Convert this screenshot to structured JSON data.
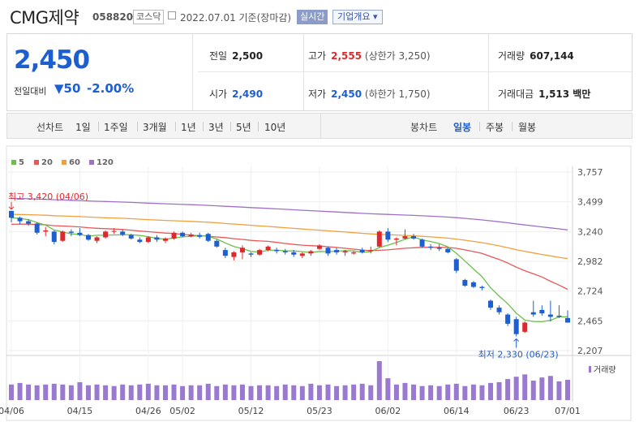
{
  "header": {
    "company_name": "CMG제약",
    "stock_code": "058820",
    "market_badge": "코스닥",
    "date_text": "2022.07.01 기준(장마감)",
    "live_badge": "실시간",
    "company_info_button": "기업개요 ▾"
  },
  "price": {
    "current": "2,450",
    "compare_label": "전일대비",
    "change": "▼50",
    "change_pct": "-2.00%"
  },
  "stats": {
    "prev_close_label": "전일",
    "prev_close": "2,500",
    "high_label": "고가",
    "high": "2,555",
    "upper_limit": "(상한가 3,250)",
    "volume_label": "거래량",
    "volume": "607,144",
    "open_label": "시가",
    "open": "2,490",
    "low_label": "저가",
    "low": "2,450",
    "lower_limit": "(하한가 1,750)",
    "amount_label": "거래대금",
    "amount": "1,513 백만"
  },
  "tabs": {
    "line_label": "선차트",
    "line_ranges": [
      "1일",
      "1주일",
      "3개월",
      "1년",
      "3년",
      "5년",
      "10년"
    ],
    "candle_label": "봉차트",
    "candle_ranges": [
      "일봉",
      "주봉",
      "월봉"
    ],
    "candle_active": "일봉"
  },
  "colors": {
    "up": "#e0282c",
    "down": "#1e5fd0",
    "ma5": "#6cc04a",
    "ma20": "#e8585a",
    "ma60": "#f0a040",
    "ma120": "#a070c8",
    "volume": "#9a7ad0"
  },
  "chart_data": {
    "type": "candlestick",
    "legend": [
      "5",
      "20",
      "60",
      "120"
    ],
    "y_ticks": [
      "3,757",
      "3,499",
      "3,240",
      "2,982",
      "2,724",
      "2,465",
      "2,207"
    ],
    "ylim": [
      2207,
      3757
    ],
    "x_ticks": [
      "04/06",
      "04/15",
      "04/26",
      "05/02",
      "05/12",
      "05/23",
      "06/02",
      "06/14",
      "06/23",
      "07/01"
    ],
    "x_tick_index": [
      0,
      8,
      16,
      20,
      28,
      36,
      44,
      52,
      59,
      65
    ],
    "max_label": "최고 3,420 (04/06)",
    "min_label": "최저 2,330 (06/23)",
    "volume_label": "거래량",
    "candles": [
      [
        3420,
        3420,
        3320,
        3360
      ],
      [
        3360,
        3370,
        3300,
        3330
      ],
      [
        3330,
        3345,
        3290,
        3310
      ],
      [
        3310,
        3320,
        3215,
        3230
      ],
      [
        3240,
        3280,
        3200,
        3250
      ],
      [
        3240,
        3250,
        3130,
        3150
      ],
      [
        3160,
        3250,
        3150,
        3240
      ],
      [
        3240,
        3260,
        3200,
        3230
      ],
      [
        3230,
        3270,
        3200,
        3210
      ],
      [
        3210,
        3220,
        3160,
        3170
      ],
      [
        3160,
        3200,
        3140,
        3190
      ],
      [
        3190,
        3250,
        3180,
        3240
      ],
      [
        3240,
        3270,
        3220,
        3245
      ],
      [
        3240,
        3260,
        3200,
        3215
      ],
      [
        3210,
        3220,
        3170,
        3180
      ],
      [
        3170,
        3190,
        3140,
        3150
      ],
      [
        3150,
        3200,
        3140,
        3190
      ],
      [
        3190,
        3210,
        3150,
        3170
      ],
      [
        3160,
        3190,
        3140,
        3180
      ],
      [
        3180,
        3240,
        3170,
        3230
      ],
      [
        3230,
        3240,
        3190,
        3200
      ],
      [
        3200,
        3230,
        3190,
        3215
      ],
      [
        3210,
        3230,
        3180,
        3195
      ],
      [
        3220,
        3230,
        3150,
        3160
      ],
      [
        3160,
        3170,
        3100,
        3110
      ],
      [
        3080,
        3100,
        3010,
        3030
      ],
      [
        3020,
        3070,
        2990,
        3060
      ],
      [
        3060,
        3120,
        3000,
        3100
      ],
      [
        3050,
        3060,
        3020,
        3040
      ],
      [
        3040,
        3090,
        3030,
        3080
      ],
      [
        3080,
        3120,
        3070,
        3110
      ],
      [
        3080,
        3100,
        3050,
        3070
      ],
      [
        3070,
        3090,
        3040,
        3060
      ],
      [
        3060,
        3080,
        3020,
        3040
      ],
      [
        3030,
        3060,
        3010,
        3050
      ],
      [
        3050,
        3080,
        3030,
        3070
      ],
      [
        3090,
        3130,
        3080,
        3120
      ],
      [
        3100,
        3110,
        3030,
        3050
      ],
      [
        3080,
        3100,
        3040,
        3060
      ],
      [
        3060,
        3080,
        3030,
        3070
      ],
      [
        3050,
        3070,
        3040,
        3060
      ],
      [
        3080,
        3100,
        3050,
        3060
      ],
      [
        3070,
        3110,
        3050,
        3080
      ],
      [
        3110,
        3250,
        3100,
        3240
      ],
      [
        3240,
        3270,
        3150,
        3170
      ],
      [
        3170,
        3190,
        3120,
        3180
      ],
      [
        3180,
        3260,
        3170,
        3200
      ],
      [
        3200,
        3220,
        3170,
        3180
      ],
      [
        3170,
        3180,
        3100,
        3110
      ],
      [
        3110,
        3130,
        3080,
        3100
      ],
      [
        3100,
        3130,
        3070,
        3090
      ],
      [
        3090,
        3100,
        3050,
        3060
      ],
      [
        3000,
        3010,
        2880,
        2900
      ],
      [
        2820,
        2830,
        2760,
        2770
      ],
      [
        2800,
        2810,
        2750,
        2760
      ],
      [
        2760,
        2770,
        2730,
        2750
      ],
      [
        2640,
        2650,
        2560,
        2580
      ],
      [
        2580,
        2600,
        2520,
        2540
      ],
      [
        2520,
        2530,
        2420,
        2440
      ],
      [
        2480,
        2500,
        2330,
        2350
      ],
      [
        2370,
        2460,
        2360,
        2450
      ],
      [
        2540,
        2640,
        2500,
        2520
      ],
      [
        2560,
        2600,
        2510,
        2530
      ],
      [
        2520,
        2640,
        2460,
        2500
      ],
      [
        2510,
        2600,
        2490,
        2500
      ],
      [
        2490,
        2555,
        2450,
        2450
      ]
    ],
    "volumes": [
      40,
      44,
      40,
      38,
      40,
      42,
      40,
      38,
      46,
      38,
      40,
      38,
      36,
      40,
      38,
      40,
      42,
      38,
      38,
      40,
      36,
      38,
      38,
      42,
      36,
      40,
      38,
      40,
      36,
      38,
      38,
      36,
      40,
      38,
      36,
      42,
      38,
      40,
      36,
      38,
      40,
      42,
      38,
      100,
      56,
      40,
      44,
      40,
      36,
      38,
      36,
      40,
      42,
      36,
      40,
      38,
      44,
      46,
      54,
      60,
      66,
      50,
      58,
      62,
      48,
      52
    ]
  }
}
